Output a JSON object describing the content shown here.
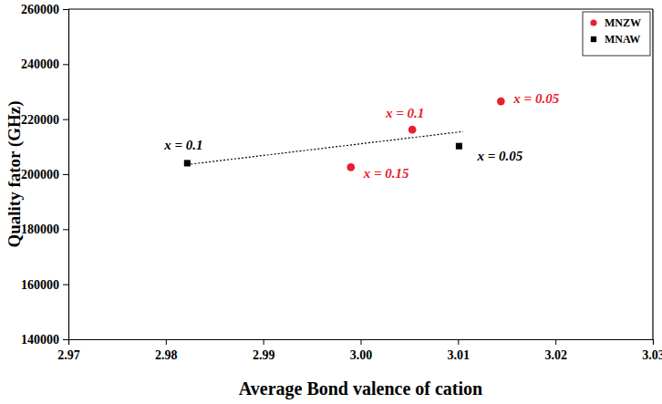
{
  "chart_data": {
    "type": "scatter",
    "x_label": "Average Bond valence of cation",
    "y_label": "Quality fator (GHz)",
    "xlim": [
      2.97,
      3.03
    ],
    "xticks": [
      2.97,
      2.98,
      2.99,
      {
        "value": 3,
        "label": "3.00"
      },
      3.01,
      3.02,
      3.03
    ],
    "ylim": [
      140000,
      260000
    ],
    "yticks": [
      140000,
      160000,
      180000,
      200000,
      220000,
      240000,
      260000
    ],
    "grid": false,
    "legend": "upper right",
    "series": [
      {
        "name": "MNZW",
        "color": "#e8202a",
        "marker": "circle",
        "x": [
          3.0144,
          3.0053,
          2.999
        ],
        "values": [
          226500,
          216200,
          202500
        ],
        "point_labels": [
          "x = 0.05",
          "x = 0.1",
          "x = 0.15"
        ]
      },
      {
        "name": "MNAW",
        "color": "#000000",
        "marker": "square",
        "x": [
          2.9822,
          3.0101
        ],
        "values": [
          204000,
          210200
        ],
        "point_labels": [
          "x = 0.1",
          "x = 0.05"
        ]
      },
      {
        "type": "line",
        "color": "#000000",
        "line_style": "dotted",
        "x": [
          2.9822,
          3.0105
        ],
        "values": [
          203500,
          215500
        ]
      }
    ]
  }
}
